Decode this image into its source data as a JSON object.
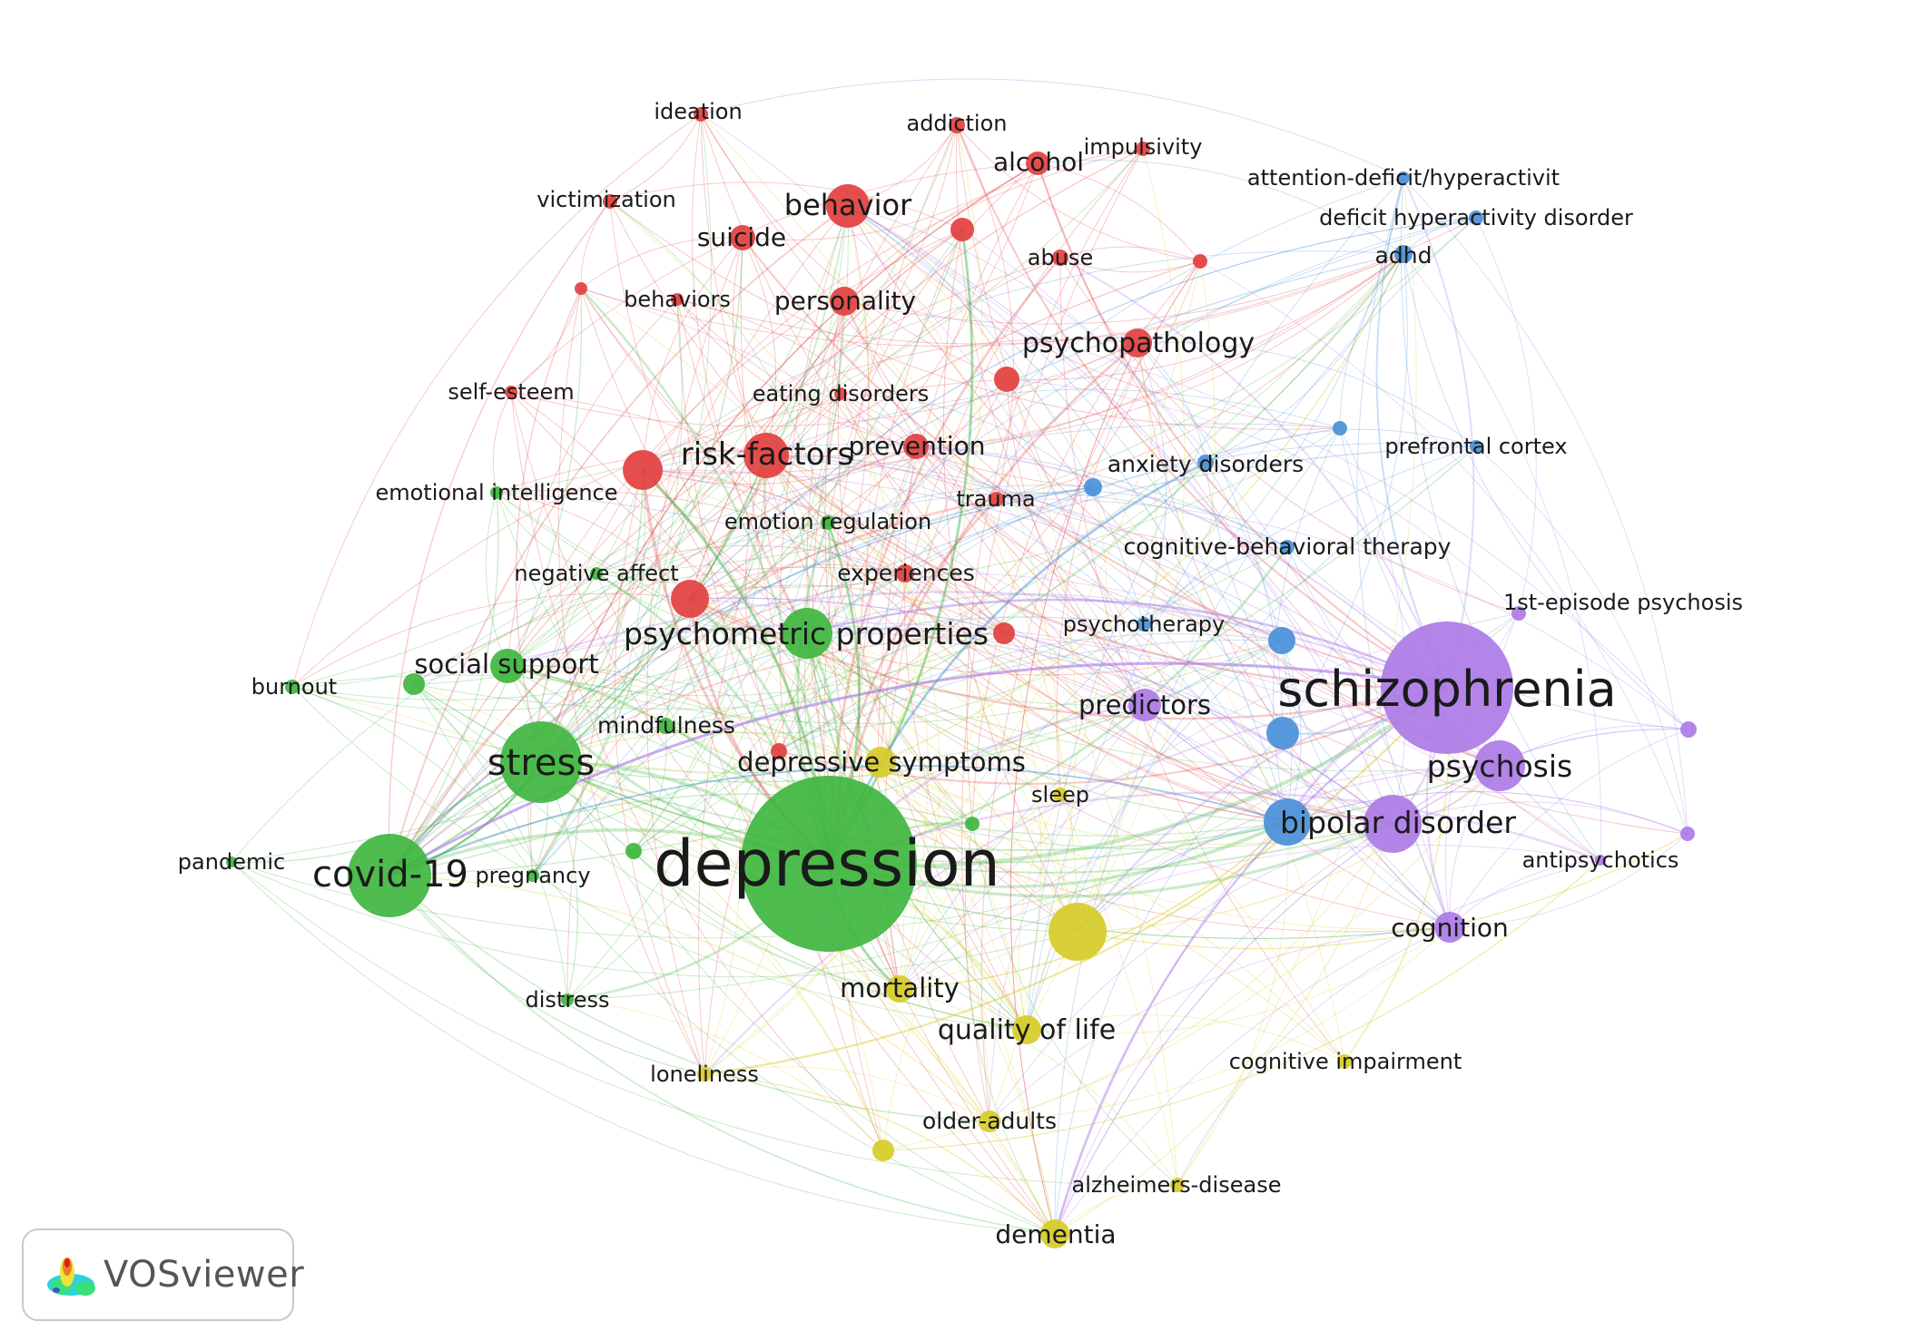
{
  "colors": {
    "red": "#e2403f",
    "green": "#3fb63f",
    "blue": "#4a90d9",
    "yellow": "#d6cc28",
    "purple": "#ad7be6"
  },
  "nodes": [
    {
      "id": "ideation",
      "label": "ideation",
      "cluster": "red"
    },
    {
      "id": "addiction",
      "label": "addiction",
      "cluster": "red"
    },
    {
      "id": "alcohol",
      "label": "alcohol",
      "cluster": "red"
    },
    {
      "id": "impulsivity",
      "label": "impulsivity",
      "cluster": "red"
    },
    {
      "id": "victimization",
      "label": "victimization",
      "cluster": "red"
    },
    {
      "id": "behavior",
      "label": "behavior",
      "cluster": "red"
    },
    {
      "id": "suicide",
      "label": "suicide",
      "cluster": "red"
    },
    {
      "id": "red-a",
      "label": "",
      "cluster": "red"
    },
    {
      "id": "abuse",
      "label": "abuse",
      "cluster": "red"
    },
    {
      "id": "red-b",
      "label": "",
      "cluster": "red"
    },
    {
      "id": "red-c",
      "label": "",
      "cluster": "red"
    },
    {
      "id": "behaviors",
      "label": "behaviors",
      "cluster": "red"
    },
    {
      "id": "personality",
      "label": "personality",
      "cluster": "red"
    },
    {
      "id": "psychopathology",
      "label": "psychopathology",
      "cluster": "red"
    },
    {
      "id": "red-d",
      "label": "",
      "cluster": "red"
    },
    {
      "id": "self-esteem",
      "label": "self-esteem",
      "cluster": "red"
    },
    {
      "id": "eating-disorders",
      "label": "eating disorders",
      "cluster": "red"
    },
    {
      "id": "red-e",
      "label": "",
      "cluster": "red"
    },
    {
      "id": "risk-factors",
      "label": "risk-factors",
      "cluster": "red"
    },
    {
      "id": "prevention",
      "label": "prevention",
      "cluster": "red"
    },
    {
      "id": "trauma",
      "label": "trauma",
      "cluster": "red"
    },
    {
      "id": "experiences",
      "label": "experiences",
      "cluster": "red"
    },
    {
      "id": "red-f",
      "label": "",
      "cluster": "red"
    },
    {
      "id": "red-g",
      "label": "",
      "cluster": "red"
    },
    {
      "id": "red-h",
      "label": "",
      "cluster": "red"
    },
    {
      "id": "emotional-intelligence",
      "label": "emotional intelligence",
      "cluster": "green"
    },
    {
      "id": "emotion-regulation",
      "label": "emotion regulation",
      "cluster": "green"
    },
    {
      "id": "negative-affect",
      "label": "negative affect",
      "cluster": "green"
    },
    {
      "id": "psychometric-properties",
      "label": "psychometric properties",
      "cluster": "green"
    },
    {
      "id": "social-support",
      "label": "social support",
      "cluster": "green"
    },
    {
      "id": "burnout",
      "label": "burnout",
      "cluster": "green"
    },
    {
      "id": "mindfulness",
      "label": "mindfulness",
      "cluster": "green"
    },
    {
      "id": "stress",
      "label": "stress",
      "cluster": "green"
    },
    {
      "id": "green-a",
      "label": "",
      "cluster": "green"
    },
    {
      "id": "covid-19",
      "label": "covid-19",
      "cluster": "green"
    },
    {
      "id": "pregnancy",
      "label": "pregnancy",
      "cluster": "green"
    },
    {
      "id": "pandemic",
      "label": "pandemic",
      "cluster": "green"
    },
    {
      "id": "green-b",
      "label": "",
      "cluster": "green"
    },
    {
      "id": "green-c",
      "label": "",
      "cluster": "green"
    },
    {
      "id": "depression",
      "label": "depression",
      "cluster": "green"
    },
    {
      "id": "distress",
      "label": "distress",
      "cluster": "green"
    },
    {
      "id": "depressive-symptoms",
      "label": "depressive symptoms",
      "cluster": "yellow"
    },
    {
      "id": "sleep",
      "label": "sleep",
      "cluster": "yellow"
    },
    {
      "id": "yellow-a",
      "label": "",
      "cluster": "yellow"
    },
    {
      "id": "mortality",
      "label": "mortality",
      "cluster": "yellow"
    },
    {
      "id": "quality-of-life",
      "label": "quality of life",
      "cluster": "yellow"
    },
    {
      "id": "loneliness",
      "label": "loneliness",
      "cluster": "yellow"
    },
    {
      "id": "older-adults",
      "label": "older-adults",
      "cluster": "yellow"
    },
    {
      "id": "yellow-b",
      "label": "",
      "cluster": "yellow"
    },
    {
      "id": "alzheimers-disease",
      "label": "alzheimers-disease",
      "cluster": "yellow"
    },
    {
      "id": "dementia",
      "label": "dementia",
      "cluster": "yellow"
    },
    {
      "id": "cognitive-impairment",
      "label": "cognitive impairment",
      "cluster": "yellow"
    },
    {
      "id": "attention-deficit",
      "label": "attention-deficit/hyperactivit",
      "cluster": "blue"
    },
    {
      "id": "deficit-hyperactivity-disorder",
      "label": "deficit hyperactivity disorder",
      "cluster": "blue"
    },
    {
      "id": "adhd",
      "label": "adhd",
      "cluster": "blue"
    },
    {
      "id": "blue-a",
      "label": "",
      "cluster": "blue"
    },
    {
      "id": "prefrontal-cortex",
      "label": "prefrontal cortex",
      "cluster": "blue"
    },
    {
      "id": "anxiety-disorders",
      "label": "anxiety disorders",
      "cluster": "blue"
    },
    {
      "id": "blue-b",
      "label": "",
      "cluster": "blue"
    },
    {
      "id": "cognitive-behavioral-therapy",
      "label": "cognitive-behavioral therapy",
      "cluster": "blue"
    },
    {
      "id": "psychotherapy",
      "label": "psychotherapy",
      "cluster": "blue"
    },
    {
      "id": "blue-c",
      "label": "",
      "cluster": "blue"
    },
    {
      "id": "blue-d",
      "label": "",
      "cluster": "blue"
    },
    {
      "id": "bipolar-disorder",
      "label": "bipolar disorder",
      "cluster": "blue"
    },
    {
      "id": "schizophrenia",
      "label": "schizophrenia",
      "cluster": "purple"
    },
    {
      "id": "1st-episode-psychosis",
      "label": "1st-episode psychosis",
      "cluster": "purple"
    },
    {
      "id": "predictors",
      "label": "predictors",
      "cluster": "purple"
    },
    {
      "id": "psychosis",
      "label": "psychosis",
      "cluster": "purple"
    },
    {
      "id": "purple-a",
      "label": "",
      "cluster": "purple"
    },
    {
      "id": "purple-b",
      "label": "",
      "cluster": "purple"
    },
    {
      "id": "antipsychotics",
      "label": "antipsychotics",
      "cluster": "purple"
    },
    {
      "id": "cognition",
      "label": "cognition",
      "cluster": "purple"
    },
    {
      "id": "purple-c",
      "label": "",
      "cluster": "purple"
    }
  ],
  "brand": {
    "name": "VOSviewer",
    "logo_icon": "vosviewer-logo-icon"
  }
}
